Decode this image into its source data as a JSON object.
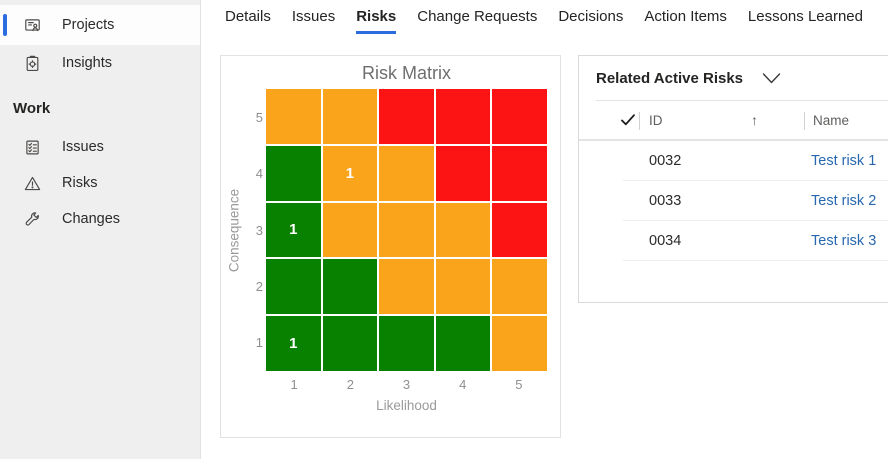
{
  "colors": {
    "accent_blue": "#2b6cdf",
    "link_blue": "#2767ae",
    "green": "#088000",
    "orange": "#faa41b",
    "red": "#fc1414",
    "sidebar_bg": "#efefef"
  },
  "sidebar": {
    "main_items": [
      {
        "label": "Projects",
        "icon": "projects-icon",
        "selected": true
      },
      {
        "label": "Insights",
        "icon": "insights-icon",
        "selected": false
      }
    ],
    "section_label": "Work",
    "work_items": [
      {
        "label": "Issues",
        "icon": "issues-icon"
      },
      {
        "label": "Risks",
        "icon": "risks-icon"
      },
      {
        "label": "Changes",
        "icon": "changes-icon"
      }
    ]
  },
  "tabs": {
    "items": [
      "Details",
      "Issues",
      "Risks",
      "Change Requests",
      "Decisions",
      "Action Items",
      "Lessons Learned"
    ],
    "active": "Risks"
  },
  "chart_data": {
    "type": "heatmap",
    "title": "Risk Matrix",
    "xlabel": "Likelihood",
    "ylabel": "Consequence",
    "x_ticks": [
      "1",
      "2",
      "3",
      "4",
      "5"
    ],
    "y_ticks": [
      "5",
      "4",
      "3",
      "2",
      "1"
    ],
    "legend": false,
    "cell_colors_by_row": [
      [
        "orange",
        "orange",
        "red",
        "red",
        "red"
      ],
      [
        "green",
        "orange",
        "orange",
        "red",
        "red"
      ],
      [
        "green",
        "orange",
        "orange",
        "orange",
        "red"
      ],
      [
        "green",
        "green",
        "orange",
        "orange",
        "orange"
      ],
      [
        "green",
        "green",
        "green",
        "green",
        "orange"
      ]
    ],
    "cell_counts": [
      {
        "consequence": 4,
        "likelihood": 2,
        "count": 1
      },
      {
        "consequence": 3,
        "likelihood": 1,
        "count": 1
      },
      {
        "consequence": 1,
        "likelihood": 1,
        "count": 1
      }
    ]
  },
  "risk_panel": {
    "title": "Related Active Risks",
    "chevron_icon": "chevron-down-icon",
    "table": {
      "select_all_icon": "checkmark-icon",
      "columns": [
        {
          "label": "ID",
          "sort": "ascending",
          "sort_indicator": "↑"
        },
        {
          "label": "Name"
        }
      ],
      "rows": [
        {
          "id": "0032",
          "name": "Test risk 1"
        },
        {
          "id": "0033",
          "name": "Test risk 2"
        },
        {
          "id": "0034",
          "name": "Test risk 3"
        }
      ]
    }
  }
}
